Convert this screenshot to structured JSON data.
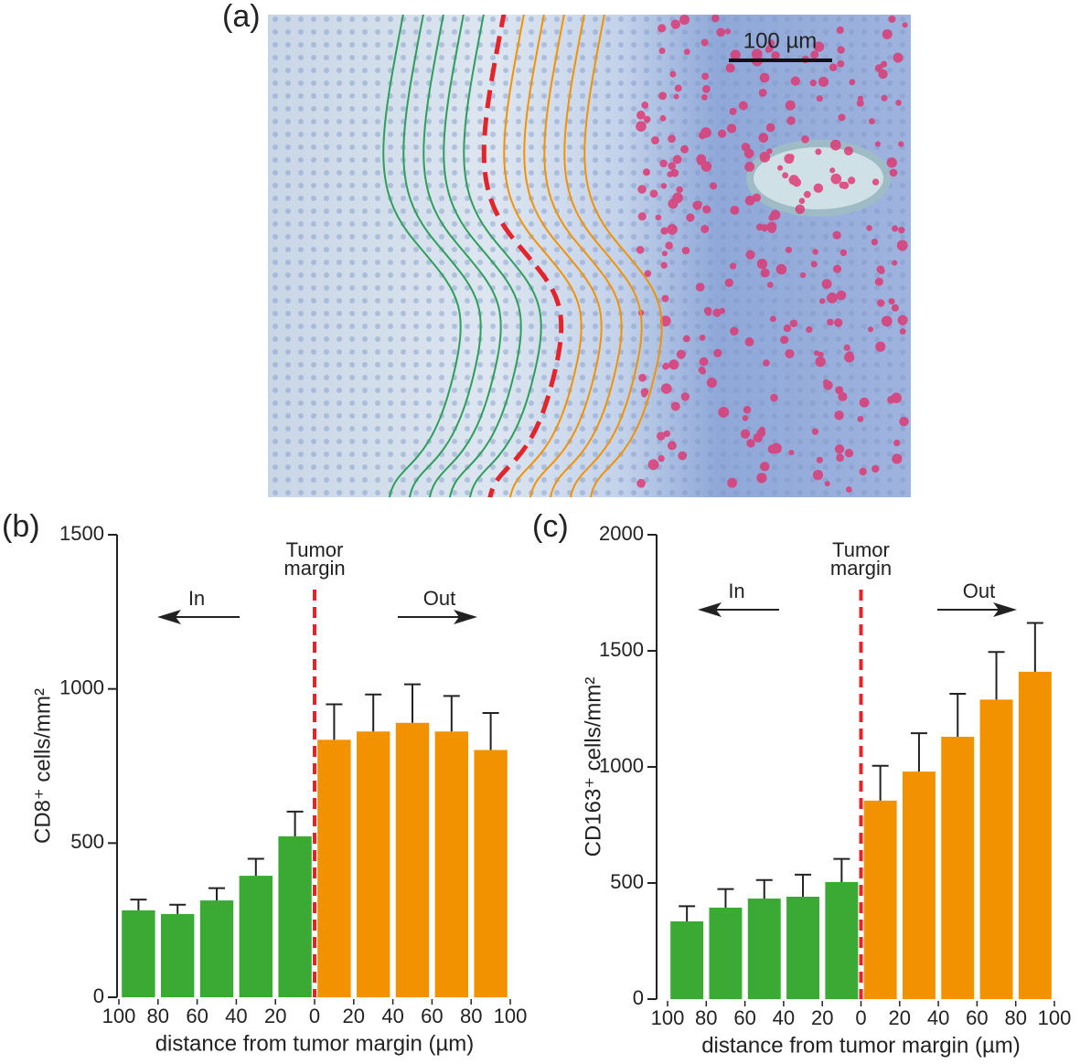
{
  "panel_a": {
    "label": "(a)",
    "scale_bar": "100 µm"
  },
  "chart_data": [
    {
      "type": "bar",
      "panel_label": "(b)",
      "ylabel": "CD8⁺ cells/mm²",
      "xlabel": "distance from tumor margin (µm)",
      "margin_label": [
        "Tumor",
        "margin"
      ],
      "ylim": [
        0,
        1500
      ],
      "yticks": [
        0,
        500,
        1000,
        1500
      ],
      "xlim": [
        -100,
        100
      ],
      "xticks": [
        {
          "value": -100,
          "label": "100"
        },
        {
          "value": -80,
          "label": "80"
        },
        {
          "value": -60,
          "label": "60"
        },
        {
          "value": -40,
          "label": "40"
        },
        {
          "value": -20,
          "label": "20"
        },
        0,
        20,
        40,
        60,
        80,
        100
      ],
      "series": [
        {
          "name": "In",
          "color": "#3aaa35",
          "x": [
            -90,
            -70,
            -50,
            -30,
            -10
          ],
          "values": [
            282,
            270,
            314,
            394,
            522
          ],
          "errors": [
            35,
            30,
            40,
            55,
            80
          ]
        },
        {
          "name": "Out",
          "color": "#f39200",
          "x": [
            10,
            30,
            50,
            70,
            90
          ],
          "values": [
            835,
            862,
            890,
            862,
            802
          ],
          "errors": [
            115,
            120,
            125,
            115,
            120
          ]
        }
      ]
    },
    {
      "type": "bar",
      "panel_label": "(c)",
      "ylabel": "CD163⁺ cells/mm²",
      "xlabel": "distance from tumor margin (µm)",
      "margin_label": [
        "Tumor",
        "margin"
      ],
      "ylim": [
        0,
        2000
      ],
      "yticks": [
        0,
        500,
        1000,
        1500,
        2000
      ],
      "xlim": [
        -100,
        100
      ],
      "xticks": [
        {
          "value": -100,
          "label": "100"
        },
        {
          "value": -80,
          "label": "80"
        },
        {
          "value": -60,
          "label": "60"
        },
        {
          "value": -40,
          "label": "40"
        },
        {
          "value": -20,
          "label": "20"
        },
        0,
        20,
        40,
        60,
        80,
        100
      ],
      "series": [
        {
          "name": "In",
          "color": "#3aaa35",
          "x": [
            -90,
            -70,
            -50,
            -30,
            -10
          ],
          "values": [
            335,
            394,
            433,
            441,
            504
          ],
          "errors": [
            65,
            80,
            80,
            95,
            100
          ]
        },
        {
          "name": "Out",
          "color": "#f39200",
          "x": [
            10,
            30,
            50,
            70,
            90
          ],
          "values": [
            855,
            980,
            1130,
            1290,
            1410
          ],
          "errors": [
            150,
            165,
            185,
            205,
            210
          ]
        }
      ]
    }
  ]
}
